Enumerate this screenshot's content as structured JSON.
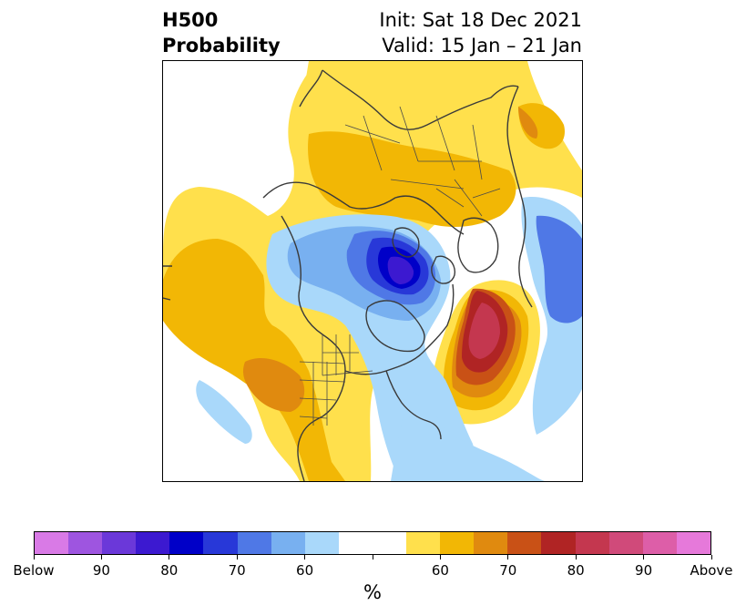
{
  "title": {
    "left_line1": "H500",
    "left_line2": "Probability",
    "right_line1": "Init: Sat 18 Dec 2021",
    "right_line2": "Valid: 15 Jan – 21 Jan"
  },
  "map": {
    "projection": "north-polar-stereographic",
    "features": [
      "coastlines",
      "country-borders",
      "us-state-borders"
    ]
  },
  "colorbar": {
    "colors": [
      "#d97ae6",
      "#9e55e0",
      "#6b38d9",
      "#3c19d0",
      "#0000c8",
      "#2838d8",
      "#4f78e6",
      "#78b0f0",
      "#a9d8fa",
      "#ffffff",
      "#ffffff",
      "#ffe04c",
      "#f2b705",
      "#e08a0f",
      "#c95116",
      "#b02424",
      "#c4374f",
      "#d04a7a",
      "#dd5ea8",
      "#e679da"
    ],
    "labels": [
      "Below",
      "90",
      "80",
      "70",
      "60",
      "60",
      "70",
      "80",
      "90",
      "Above"
    ],
    "unit": "%"
  }
}
